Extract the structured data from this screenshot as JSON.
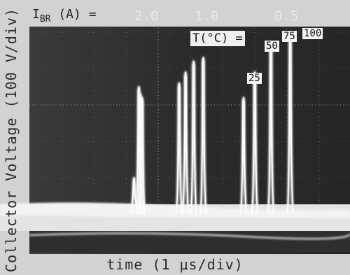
{
  "chart_data": {
    "type": "line",
    "xlabel": "time (1 μs/div)",
    "ylabel": "Collector Voltage (100 V/div)",
    "current_header": {
      "label": "I",
      "subscript": "BR",
      "unit": "(A)",
      "equals": "="
    },
    "current_values": [
      "2.0",
      "1.0",
      "0.5"
    ],
    "temperature_legend": {
      "label": "T(°C) =",
      "values": [
        "25",
        "50",
        "75",
        "100"
      ]
    },
    "traces": [
      {
        "x": [
          3.25,
          3.4,
          3.45,
          3.5
        ],
        "y": [
          1.0,
          3.5,
          3.3,
          3.2
        ]
      },
      {
        "x": [
          4.65,
          4.85,
          5.1,
          5.4
        ],
        "y": [
          3.6,
          3.9,
          4.2,
          4.3
        ]
      },
      {
        "x": [
          6.65,
          7.0,
          7.5,
          8.1
        ],
        "y": [
          3.2,
          3.9,
          4.6,
          4.9
        ]
      }
    ],
    "grid": true
  }
}
